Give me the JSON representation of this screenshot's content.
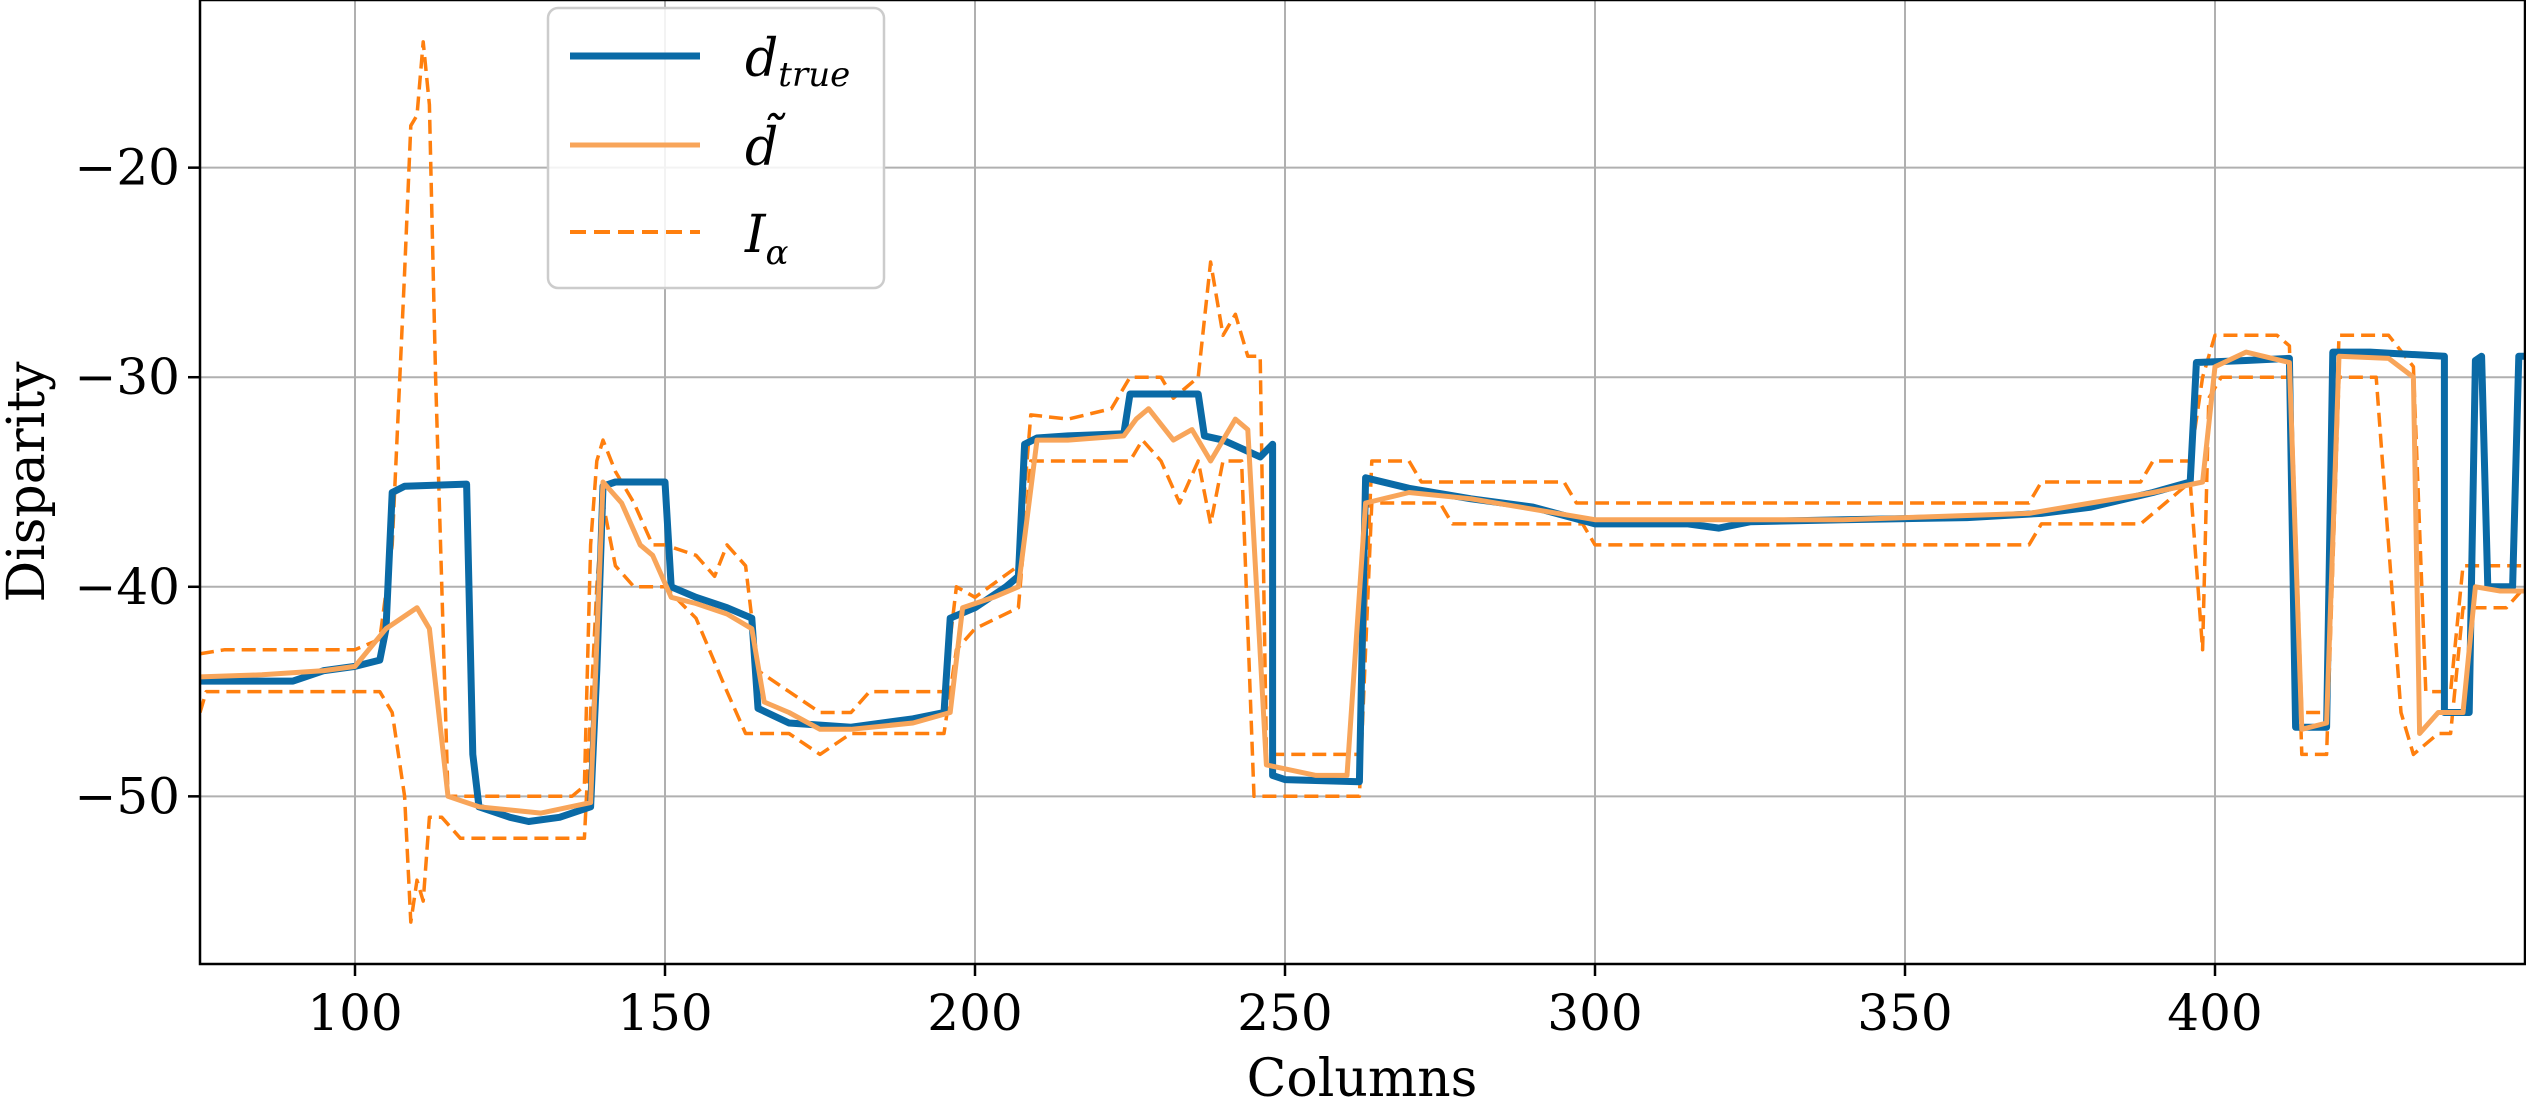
{
  "chart_data": {
    "type": "line",
    "xlabel": "Columns",
    "ylabel": "Disparity",
    "xlim": [
      75,
      450
    ],
    "ylim": [
      -58,
      -12
    ],
    "xticks": [
      100,
      150,
      200,
      250,
      300,
      350,
      400
    ],
    "yticks": [
      -20,
      -30,
      -40,
      -50
    ],
    "grid": true,
    "legend_position": "upper-left",
    "colors": {
      "d_true": "#0a6aa6",
      "d_tilde": "#f8a55a",
      "I_alpha": "#ff7f0e"
    },
    "legend": [
      {
        "key": "d_true",
        "label": "d",
        "subscript": "true"
      },
      {
        "key": "d_tilde",
        "label": "d̃",
        "subscript": ""
      },
      {
        "key": "I_alpha",
        "label": "I",
        "subscript": "α"
      }
    ],
    "series": [
      {
        "key": "d_true",
        "style": "solid",
        "points": [
          [
            75,
            -44.5
          ],
          [
            90,
            -44.5
          ],
          [
            95,
            -44
          ],
          [
            100,
            -43.8
          ],
          [
            104,
            -43.5
          ],
          [
            105,
            -42
          ],
          [
            106,
            -35.5
          ],
          [
            108,
            -35.2
          ],
          [
            118,
            -35.1
          ],
          [
            119,
            -48
          ],
          [
            120,
            -50.5
          ],
          [
            125,
            -51
          ],
          [
            128,
            -51.2
          ],
          [
            133,
            -51
          ],
          [
            138,
            -50.5
          ],
          [
            139,
            -44
          ],
          [
            140,
            -35.2
          ],
          [
            142,
            -35
          ],
          [
            150,
            -35
          ],
          [
            151,
            -40
          ],
          [
            155,
            -40.5
          ],
          [
            160,
            -41
          ],
          [
            164,
            -41.5
          ],
          [
            165,
            -45.8
          ],
          [
            170,
            -46.5
          ],
          [
            180,
            -46.7
          ],
          [
            190,
            -46.3
          ],
          [
            195,
            -46
          ],
          [
            196,
            -41.5
          ],
          [
            200,
            -41
          ],
          [
            205,
            -40
          ],
          [
            207,
            -39.5
          ],
          [
            208,
            -33.2
          ],
          [
            210,
            -32.9
          ],
          [
            215,
            -32.8
          ],
          [
            224,
            -32.7
          ],
          [
            225,
            -30.8
          ],
          [
            236,
            -30.8
          ],
          [
            237,
            -32.8
          ],
          [
            240,
            -33
          ],
          [
            246,
            -33.8
          ],
          [
            248,
            -33.2
          ],
          [
            248,
            -49
          ],
          [
            250,
            -49.2
          ],
          [
            262,
            -49.3
          ],
          [
            263,
            -34.8
          ],
          [
            270,
            -35.3
          ],
          [
            280,
            -35.8
          ],
          [
            290,
            -36.2
          ],
          [
            300,
            -37
          ],
          [
            315,
            -37
          ],
          [
            320,
            -37.2
          ],
          [
            325,
            -36.9
          ],
          [
            340,
            -36.8
          ],
          [
            360,
            -36.7
          ],
          [
            372,
            -36.5
          ],
          [
            380,
            -36.2
          ],
          [
            390,
            -35.5
          ],
          [
            396,
            -35
          ],
          [
            397,
            -29.3
          ],
          [
            405,
            -29.2
          ],
          [
            412,
            -29.1
          ],
          [
            413,
            -46.7
          ],
          [
            418,
            -46.7
          ],
          [
            419,
            -28.8
          ],
          [
            425,
            -28.8
          ],
          [
            437,
            -29
          ],
          [
            437,
            -46
          ],
          [
            441,
            -46
          ],
          [
            442,
            -29.2
          ],
          [
            443,
            -29
          ],
          [
            444,
            -40
          ],
          [
            448,
            -40
          ],
          [
            449,
            -29
          ],
          [
            452,
            -29
          ]
        ]
      },
      {
        "key": "d_tilde",
        "style": "solid",
        "points": [
          [
            75,
            -44.3
          ],
          [
            85,
            -44.2
          ],
          [
            95,
            -44
          ],
          [
            100,
            -43.8
          ],
          [
            105,
            -42
          ],
          [
            110,
            -41
          ],
          [
            112,
            -42
          ],
          [
            115,
            -50
          ],
          [
            117,
            -50.2
          ],
          [
            120,
            -50.5
          ],
          [
            130,
            -50.8
          ],
          [
            138,
            -50.3
          ],
          [
            140,
            -35
          ],
          [
            143,
            -36
          ],
          [
            146,
            -38
          ],
          [
            148,
            -38.5
          ],
          [
            151,
            -40.5
          ],
          [
            155,
            -40.8
          ],
          [
            160,
            -41.3
          ],
          [
            164,
            -42
          ],
          [
            166,
            -45.5
          ],
          [
            170,
            -46
          ],
          [
            175,
            -46.8
          ],
          [
            180,
            -46.8
          ],
          [
            190,
            -46.5
          ],
          [
            196,
            -46
          ],
          [
            198,
            -41
          ],
          [
            203,
            -40.5
          ],
          [
            207,
            -40
          ],
          [
            210,
            -33
          ],
          [
            215,
            -33
          ],
          [
            224,
            -32.8
          ],
          [
            226,
            -32
          ],
          [
            228,
            -31.5
          ],
          [
            232,
            -33
          ],
          [
            235,
            -32.5
          ],
          [
            238,
            -34
          ],
          [
            242,
            -32
          ],
          [
            244,
            -32.5
          ],
          [
            247,
            -48.5
          ],
          [
            255,
            -49
          ],
          [
            260,
            -49
          ],
          [
            263,
            -36
          ],
          [
            270,
            -35.5
          ],
          [
            280,
            -35.8
          ],
          [
            300,
            -36.8
          ],
          [
            340,
            -36.8
          ],
          [
            370,
            -36.5
          ],
          [
            390,
            -35.5
          ],
          [
            398,
            -35
          ],
          [
            400,
            -29.5
          ],
          [
            405,
            -28.8
          ],
          [
            412,
            -29.3
          ],
          [
            414,
            -46.8
          ],
          [
            418,
            -46.5
          ],
          [
            420,
            -29
          ],
          [
            428,
            -29.1
          ],
          [
            432,
            -30
          ],
          [
            433,
            -47
          ],
          [
            436,
            -46
          ],
          [
            440,
            -46
          ],
          [
            442,
            -40
          ],
          [
            446,
            -40.2
          ],
          [
            452,
            -40.2
          ]
        ]
      },
      {
        "key": "I_alpha",
        "style": "dashed",
        "name": "upper",
        "points": [
          [
            75,
            -43.2
          ],
          [
            79,
            -43
          ],
          [
            100,
            -43
          ],
          [
            104,
            -42.5
          ],
          [
            106,
            -38
          ],
          [
            108,
            -25
          ],
          [
            109,
            -18
          ],
          [
            110,
            -17.5
          ],
          [
            111,
            -14
          ],
          [
            112,
            -17
          ],
          [
            113,
            -30
          ],
          [
            114,
            -40
          ],
          [
            115,
            -50
          ],
          [
            117,
            -50
          ],
          [
            135,
            -50
          ],
          [
            137,
            -49.5
          ],
          [
            138,
            -38
          ],
          [
            139,
            -34
          ],
          [
            140,
            -33
          ],
          [
            142,
            -34.5
          ],
          [
            145,
            -36
          ],
          [
            148,
            -38
          ],
          [
            150,
            -38
          ],
          [
            155,
            -38.5
          ],
          [
            158,
            -39.5
          ],
          [
            160,
            -38
          ],
          [
            163,
            -39
          ],
          [
            165,
            -44
          ],
          [
            170,
            -45
          ],
          [
            175,
            -46
          ],
          [
            180,
            -46
          ],
          [
            183,
            -45
          ],
          [
            195,
            -45
          ],
          [
            197,
            -40
          ],
          [
            200,
            -40.5
          ],
          [
            207,
            -39
          ],
          [
            209,
            -31.8
          ],
          [
            215,
            -32
          ],
          [
            222,
            -31.5
          ],
          [
            225,
            -30
          ],
          [
            230,
            -30
          ],
          [
            232,
            -31
          ],
          [
            236,
            -30
          ],
          [
            238,
            -24.5
          ],
          [
            240,
            -28
          ],
          [
            242,
            -27
          ],
          [
            244,
            -29
          ],
          [
            246,
            -29
          ],
          [
            247,
            -48
          ],
          [
            262,
            -48
          ],
          [
            264,
            -34
          ],
          [
            270,
            -34
          ],
          [
            272,
            -35
          ],
          [
            295,
            -35
          ],
          [
            297,
            -36
          ],
          [
            370,
            -36
          ],
          [
            372,
            -35
          ],
          [
            388,
            -35
          ],
          [
            390,
            -34
          ],
          [
            396,
            -34
          ],
          [
            398,
            -30
          ],
          [
            400,
            -28
          ],
          [
            410,
            -28
          ],
          [
            412,
            -28.5
          ],
          [
            414,
            -46
          ],
          [
            418,
            -46
          ],
          [
            420,
            -28
          ],
          [
            428,
            -28
          ],
          [
            432,
            -29.5
          ],
          [
            434,
            -45
          ],
          [
            438,
            -45
          ],
          [
            440,
            -39
          ],
          [
            452,
            -39
          ]
        ]
      },
      {
        "key": "I_alpha",
        "style": "dashed",
        "name": "lower",
        "points": [
          [
            75,
            -46
          ],
          [
            76,
            -45
          ],
          [
            100,
            -45
          ],
          [
            104,
            -45
          ],
          [
            106,
            -46
          ],
          [
            108,
            -50
          ],
          [
            109,
            -56
          ],
          [
            110,
            -54
          ],
          [
            111,
            -55
          ],
          [
            112,
            -51
          ],
          [
            114,
            -51
          ],
          [
            117,
            -52
          ],
          [
            130,
            -52
          ],
          [
            137,
            -52
          ],
          [
            139,
            -40
          ],
          [
            140,
            -36
          ],
          [
            142,
            -39
          ],
          [
            145,
            -40
          ],
          [
            150,
            -40
          ],
          [
            155,
            -41.5
          ],
          [
            160,
            -45
          ],
          [
            163,
            -47
          ],
          [
            165,
            -47
          ],
          [
            170,
            -47
          ],
          [
            175,
            -48
          ],
          [
            180,
            -47
          ],
          [
            195,
            -47
          ],
          [
            197,
            -43
          ],
          [
            200,
            -42
          ],
          [
            207,
            -41
          ],
          [
            209,
            -34
          ],
          [
            225,
            -34
          ],
          [
            227,
            -33
          ],
          [
            230,
            -34
          ],
          [
            233,
            -36
          ],
          [
            236,
            -34
          ],
          [
            238,
            -37
          ],
          [
            240,
            -34
          ],
          [
            243,
            -34
          ],
          [
            245,
            -50
          ],
          [
            262,
            -50
          ],
          [
            264,
            -36
          ],
          [
            275,
            -36
          ],
          [
            277,
            -37
          ],
          [
            298,
            -37
          ],
          [
            300,
            -38
          ],
          [
            370,
            -38
          ],
          [
            372,
            -37
          ],
          [
            388,
            -37
          ],
          [
            392,
            -36
          ],
          [
            396,
            -35
          ],
          [
            398,
            -43
          ],
          [
            399,
            -31
          ],
          [
            401,
            -30
          ],
          [
            410,
            -30
          ],
          [
            412,
            -30
          ],
          [
            414,
            -48
          ],
          [
            418,
            -48
          ],
          [
            420,
            -30
          ],
          [
            426,
            -30
          ],
          [
            430,
            -46
          ],
          [
            432,
            -48
          ],
          [
            436,
            -47
          ],
          [
            438,
            -47
          ],
          [
            440,
            -41
          ],
          [
            447,
            -41
          ],
          [
            450,
            -40
          ],
          [
            452,
            -40
          ]
        ]
      }
    ]
  }
}
